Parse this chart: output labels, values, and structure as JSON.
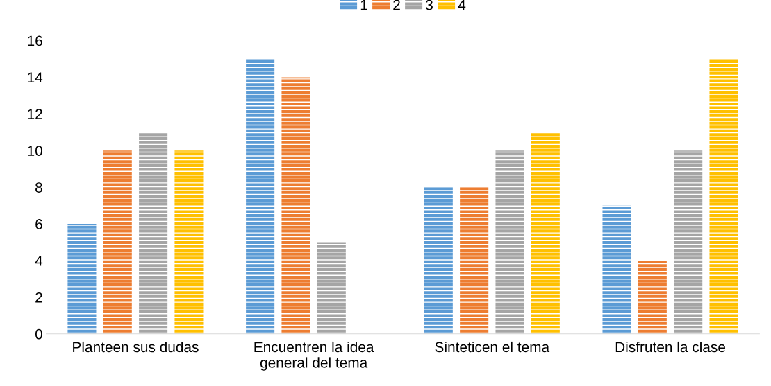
{
  "chart_data": {
    "type": "bar",
    "categories": [
      "Planteen sus dudas",
      "Encuentren la idea\ngeneral del tema",
      "Sinteticen el tema",
      "Disfruten la clase"
    ],
    "series": [
      {
        "name": "1",
        "color": "#5b9bd5",
        "values": [
          6,
          15,
          8,
          7
        ]
      },
      {
        "name": "2",
        "color": "#ed7d31",
        "values": [
          10,
          14,
          8,
          4
        ]
      },
      {
        "name": "3",
        "color": "#a5a5a5",
        "values": [
          11,
          5,
          10,
          10
        ]
      },
      {
        "name": "4",
        "color": "#ffc000",
        "values": [
          10,
          0,
          11,
          15
        ]
      }
    ],
    "ylim": [
      0,
      16
    ],
    "yticks": [
      0,
      2,
      4,
      6,
      8,
      10,
      12,
      14,
      16
    ],
    "grid": false,
    "legend": "top"
  }
}
